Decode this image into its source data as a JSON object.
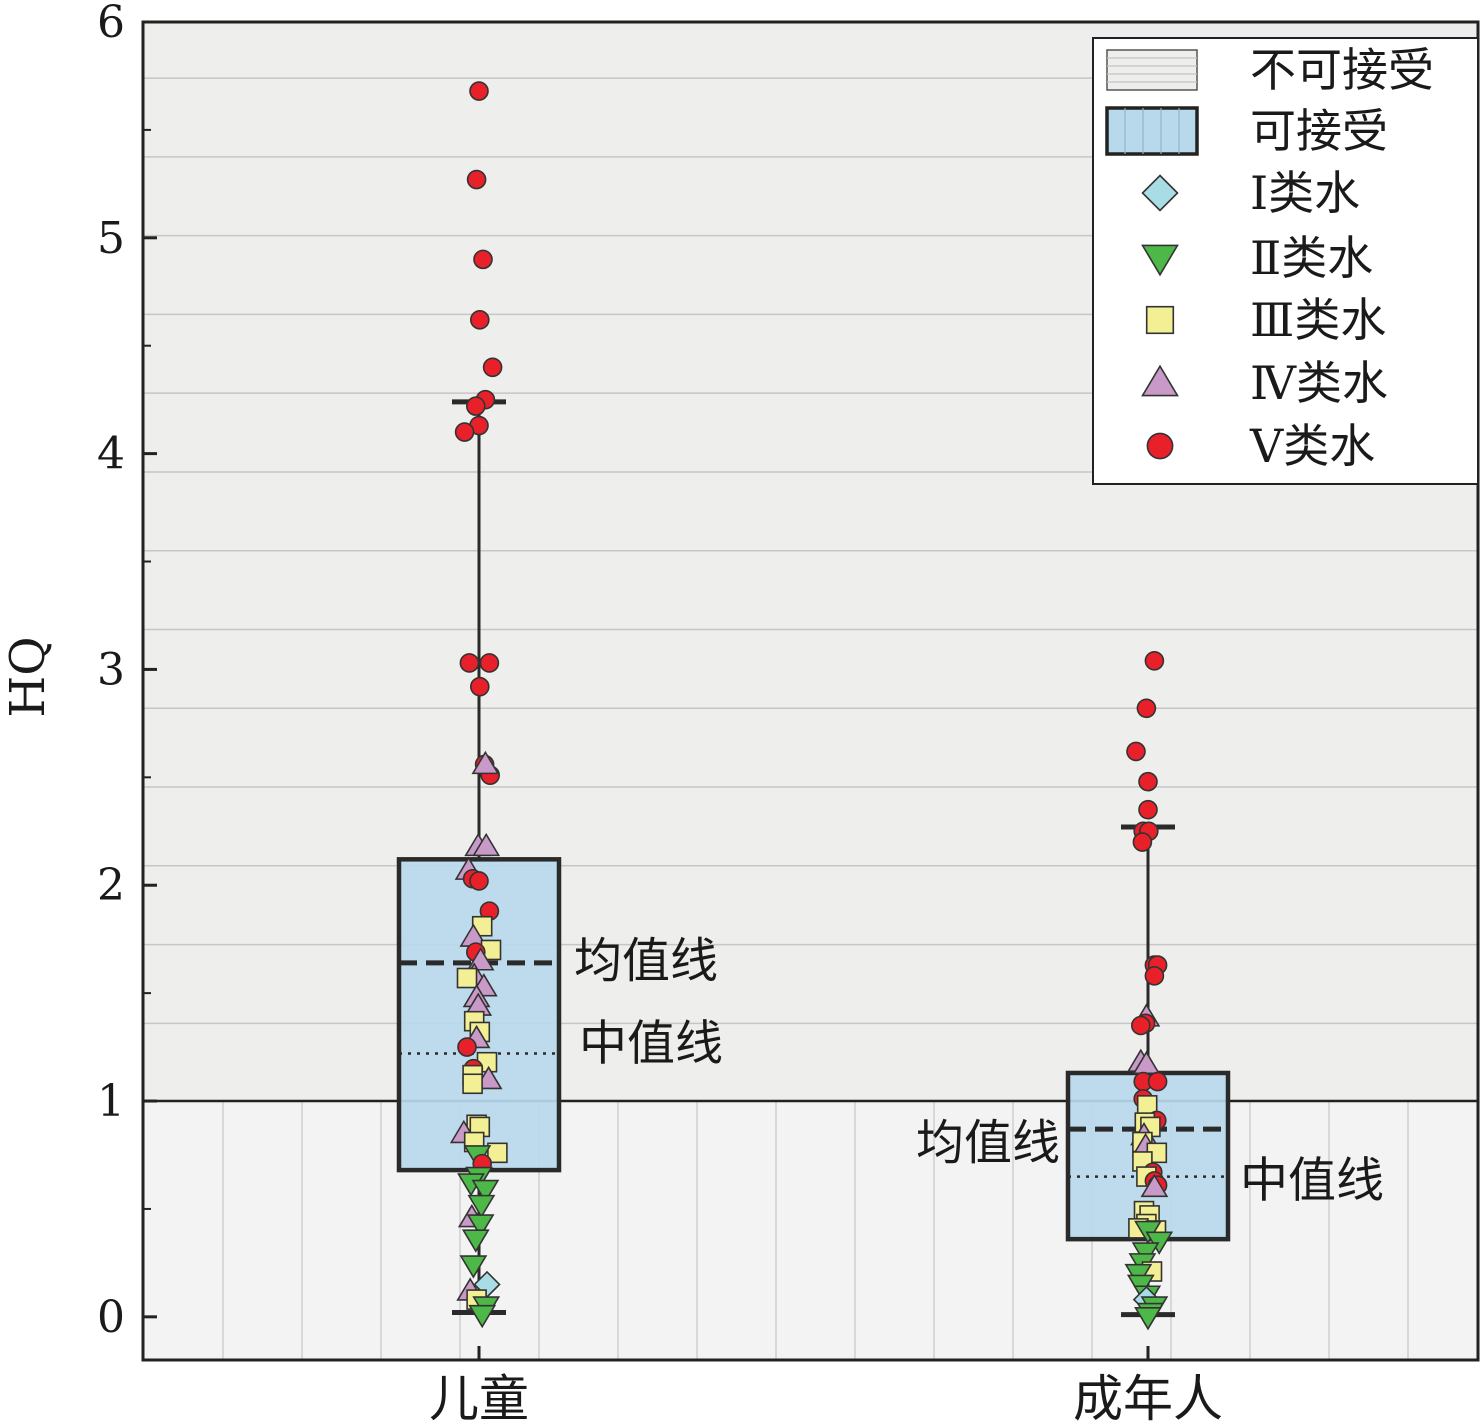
{
  "chart_data": {
    "type": "box",
    "ylabel": "HQ",
    "ylim": [
      -0.2,
      6.0
    ],
    "yticks": [
      0,
      1,
      2,
      3,
      4,
      5,
      6
    ],
    "categories": [
      "儿童",
      "成年人"
    ],
    "threshold": 1,
    "colors": {
      "unacceptable_bg": "#eeeeec",
      "acceptable_bg": "#f3f3f3",
      "box_fill": "#b8d9ec",
      "class_I": "#a8dde6",
      "class_II": "#4db848",
      "class_III": "#f3ef94",
      "class_IV": "#c99ac8",
      "class_V": "#e8202a"
    },
    "legend": {
      "position": "top-right",
      "items": [
        {
          "key": "unacceptable",
          "label": "不可接受"
        },
        {
          "key": "acceptable",
          "label": "可接受"
        },
        {
          "key": "class_I",
          "label": "Ⅰ类水",
          "marker": "diamond"
        },
        {
          "key": "class_II",
          "label": "Ⅱ类水",
          "marker": "triangle-down"
        },
        {
          "key": "class_III",
          "label": "Ⅲ类水",
          "marker": "square"
        },
        {
          "key": "class_IV",
          "label": "Ⅳ类水",
          "marker": "triangle-up"
        },
        {
          "key": "class_V",
          "label": "Ⅴ类水",
          "marker": "circle"
        }
      ]
    },
    "boxes": [
      {
        "category": "儿童",
        "q1": 0.68,
        "median": 1.22,
        "mean": 1.64,
        "q3": 2.12,
        "whisker_low": 0.02,
        "whisker_high": 4.24,
        "mean_label": "均值线",
        "median_label": "中值线",
        "points": [
          {
            "cls": "class_V",
            "y": 5.68,
            "dx": 0.0
          },
          {
            "cls": "class_V",
            "y": 5.27,
            "dx": -0.03
          },
          {
            "cls": "class_V",
            "y": 4.9,
            "dx": 0.05
          },
          {
            "cls": "class_V",
            "y": 4.62,
            "dx": 0.01
          },
          {
            "cls": "class_V",
            "y": 4.4,
            "dx": 0.17
          },
          {
            "cls": "class_V",
            "y": 4.25,
            "dx": 0.08
          },
          {
            "cls": "class_V",
            "y": 4.22,
            "dx": -0.04
          },
          {
            "cls": "class_V",
            "y": 4.13,
            "dx": 0.0
          },
          {
            "cls": "class_V",
            "y": 4.1,
            "dx": -0.18
          },
          {
            "cls": "class_V",
            "y": 3.03,
            "dx": -0.12
          },
          {
            "cls": "class_V",
            "y": 3.03,
            "dx": 0.13
          },
          {
            "cls": "class_V",
            "y": 2.92,
            "dx": 0.01
          },
          {
            "cls": "class_V",
            "y": 2.56,
            "dx": 0.07
          },
          {
            "cls": "class_V",
            "y": 2.51,
            "dx": 0.14
          },
          {
            "cls": "class_IV",
            "y": 2.56,
            "dx": 0.08
          },
          {
            "cls": "class_IV",
            "y": 2.18,
            "dx": -0.01
          },
          {
            "cls": "class_IV",
            "y": 2.18,
            "dx": 0.09
          },
          {
            "cls": "class_IV",
            "y": 2.07,
            "dx": -0.13
          },
          {
            "cls": "class_V",
            "y": 2.03,
            "dx": -0.08
          },
          {
            "cls": "class_V",
            "y": 2.02,
            "dx": 0.0
          },
          {
            "cls": "class_V",
            "y": 1.88,
            "dx": 0.13
          },
          {
            "cls": "class_III",
            "y": 1.81,
            "dx": 0.04
          },
          {
            "cls": "class_IV",
            "y": 1.76,
            "dx": -0.07
          },
          {
            "cls": "class_III",
            "y": 1.7,
            "dx": 0.15
          },
          {
            "cls": "class_V",
            "y": 1.69,
            "dx": -0.04
          },
          {
            "cls": "class_IV",
            "y": 1.65,
            "dx": 0.02
          },
          {
            "cls": "class_IV",
            "y": 1.58,
            "dx": -0.06
          },
          {
            "cls": "class_III",
            "y": 1.57,
            "dx": -0.15
          },
          {
            "cls": "class_IV",
            "y": 1.53,
            "dx": 0.06
          },
          {
            "cls": "class_IV",
            "y": 1.48,
            "dx": -0.03
          },
          {
            "cls": "class_IV",
            "y": 1.44,
            "dx": -0.01
          },
          {
            "cls": "class_III",
            "y": 1.37,
            "dx": -0.06
          },
          {
            "cls": "class_III",
            "y": 1.32,
            "dx": 0.01
          },
          {
            "cls": "class_IV",
            "y": 1.29,
            "dx": -0.03
          },
          {
            "cls": "class_V",
            "y": 1.25,
            "dx": -0.15
          },
          {
            "cls": "class_III",
            "y": 1.18,
            "dx": 0.1
          },
          {
            "cls": "class_V",
            "y": 1.15,
            "dx": -0.07
          },
          {
            "cls": "class_III",
            "y": 1.12,
            "dx": -0.08
          },
          {
            "cls": "class_IV",
            "y": 1.1,
            "dx": 0.12
          },
          {
            "cls": "class_III",
            "y": 1.08,
            "dx": -0.08
          },
          {
            "cls": "class_III",
            "y": 0.89,
            "dx": -0.03
          },
          {
            "cls": "class_III",
            "y": 0.88,
            "dx": 0.01
          },
          {
            "cls": "class_IV",
            "y": 0.85,
            "dx": -0.19
          },
          {
            "cls": "class_III",
            "y": 0.81,
            "dx": -0.06
          },
          {
            "cls": "class_III",
            "y": 0.76,
            "dx": 0.23
          },
          {
            "cls": "class_II",
            "y": 0.75,
            "dx": -0.02
          },
          {
            "cls": "class_V",
            "y": 0.71,
            "dx": 0.04
          },
          {
            "cls": "class_II",
            "y": 0.65,
            "dx": 0.0
          },
          {
            "cls": "class_II",
            "y": 0.62,
            "dx": -0.1
          },
          {
            "cls": "class_II",
            "y": 0.59,
            "dx": 0.08
          },
          {
            "cls": "class_II",
            "y": 0.52,
            "dx": 0.03
          },
          {
            "cls": "class_IV",
            "y": 0.46,
            "dx": -0.09
          },
          {
            "cls": "class_II",
            "y": 0.43,
            "dx": 0.02
          },
          {
            "cls": "class_II",
            "y": 0.36,
            "dx": -0.04
          },
          {
            "cls": "class_II",
            "y": 0.24,
            "dx": -0.07
          },
          {
            "cls": "class_I",
            "y": 0.15,
            "dx": 0.1
          },
          {
            "cls": "class_IV",
            "y": 0.12,
            "dx": -0.11
          },
          {
            "cls": "class_III",
            "y": 0.08,
            "dx": -0.03
          },
          {
            "cls": "class_II",
            "y": 0.05,
            "dx": 0.09
          },
          {
            "cls": "class_II",
            "y": 0.01,
            "dx": 0.04
          }
        ]
      },
      {
        "category": "成年人",
        "q1": 0.36,
        "median": 0.65,
        "mean": 0.87,
        "q3": 1.13,
        "whisker_low": 0.01,
        "whisker_high": 2.27,
        "mean_label": "均值线",
        "median_label": "中值线",
        "points": [
          {
            "cls": "class_V",
            "y": 3.04,
            "dx": 0.08
          },
          {
            "cls": "class_V",
            "y": 2.82,
            "dx": -0.02
          },
          {
            "cls": "class_V",
            "y": 2.62,
            "dx": -0.15
          },
          {
            "cls": "class_V",
            "y": 2.48,
            "dx": 0.0
          },
          {
            "cls": "class_V",
            "y": 2.35,
            "dx": 0.0
          },
          {
            "cls": "class_V",
            "y": 2.25,
            "dx": -0.06
          },
          {
            "cls": "class_V",
            "y": 2.25,
            "dx": 0.01
          },
          {
            "cls": "class_V",
            "y": 2.2,
            "dx": -0.07
          },
          {
            "cls": "class_V",
            "y": 1.63,
            "dx": 0.08
          },
          {
            "cls": "class_V",
            "y": 1.63,
            "dx": 0.12
          },
          {
            "cls": "class_V",
            "y": 1.58,
            "dx": 0.08
          },
          {
            "cls": "class_IV",
            "y": 1.39,
            "dx": -0.02
          },
          {
            "cls": "class_V",
            "y": 1.36,
            "dx": -0.03
          },
          {
            "cls": "class_V",
            "y": 1.35,
            "dx": -0.09
          },
          {
            "cls": "class_IV",
            "y": 1.18,
            "dx": -0.09
          },
          {
            "cls": "class_IV",
            "y": 1.17,
            "dx": -0.02
          },
          {
            "cls": "class_V",
            "y": 1.09,
            "dx": -0.06
          },
          {
            "cls": "class_V",
            "y": 1.09,
            "dx": 0.12
          },
          {
            "cls": "class_V",
            "y": 1.01,
            "dx": -0.06
          },
          {
            "cls": "class_III",
            "y": 0.98,
            "dx": -0.01
          },
          {
            "cls": "class_V",
            "y": 0.91,
            "dx": 0.11
          },
          {
            "cls": "class_III",
            "y": 0.9,
            "dx": -0.04
          },
          {
            "cls": "class_III",
            "y": 0.88,
            "dx": 0.03
          },
          {
            "cls": "class_IV",
            "y": 0.84,
            "dx": -0.05
          },
          {
            "cls": "class_III",
            "y": 0.81,
            "dx": -0.07
          },
          {
            "cls": "class_IV",
            "y": 0.79,
            "dx": -0.03
          },
          {
            "cls": "class_III",
            "y": 0.76,
            "dx": 0.11
          },
          {
            "cls": "class_III",
            "y": 0.72,
            "dx": -0.07
          },
          {
            "cls": "class_V",
            "y": 0.67,
            "dx": 0.06
          },
          {
            "cls": "class_III",
            "y": 0.65,
            "dx": -0.02
          },
          {
            "cls": "class_V",
            "y": 0.63,
            "dx": 0.08
          },
          {
            "cls": "class_V",
            "y": 0.61,
            "dx": 0.12
          },
          {
            "cls": "class_IV",
            "y": 0.6,
            "dx": 0.08
          },
          {
            "cls": "class_III",
            "y": 0.49,
            "dx": -0.05
          },
          {
            "cls": "class_III",
            "y": 0.47,
            "dx": 0.02
          },
          {
            "cls": "class_III",
            "y": 0.43,
            "dx": -0.02
          },
          {
            "cls": "class_III",
            "y": 0.41,
            "dx": -0.12
          },
          {
            "cls": "class_III",
            "y": 0.4,
            "dx": 0.1
          },
          {
            "cls": "class_II",
            "y": 0.4,
            "dx": 0.0
          },
          {
            "cls": "class_II",
            "y": 0.35,
            "dx": 0.14
          },
          {
            "cls": "class_II",
            "y": 0.3,
            "dx": -0.03
          },
          {
            "cls": "class_II",
            "y": 0.25,
            "dx": -0.07
          },
          {
            "cls": "class_III",
            "y": 0.21,
            "dx": 0.05
          },
          {
            "cls": "class_II",
            "y": 0.2,
            "dx": -0.12
          },
          {
            "cls": "class_II",
            "y": 0.15,
            "dx": -0.09
          },
          {
            "cls": "class_II",
            "y": 0.1,
            "dx": -0.01
          },
          {
            "cls": "class_I",
            "y": 0.08,
            "dx": -0.02
          },
          {
            "cls": "class_II",
            "y": 0.05,
            "dx": 0.08
          },
          {
            "cls": "class_II",
            "y": 0.02,
            "dx": 0.03
          },
          {
            "cls": "class_II",
            "y": 0.0,
            "dx": 0.0
          }
        ]
      }
    ]
  }
}
